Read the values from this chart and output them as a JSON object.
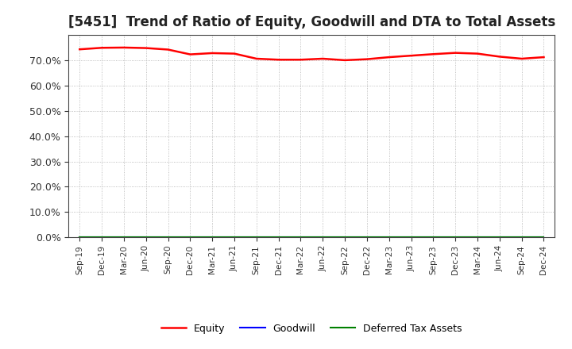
{
  "title": "[5451]  Trend of Ratio of Equity, Goodwill and DTA to Total Assets",
  "x_labels": [
    "Sep-19",
    "Dec-19",
    "Mar-20",
    "Jun-20",
    "Sep-20",
    "Dec-20",
    "Mar-21",
    "Jun-21",
    "Sep-21",
    "Dec-21",
    "Mar-22",
    "Jun-22",
    "Sep-22",
    "Dec-22",
    "Mar-23",
    "Jun-23",
    "Sep-23",
    "Dec-23",
    "Mar-24",
    "Jun-24",
    "Sep-24",
    "Dec-24"
  ],
  "equity": [
    0.743,
    0.749,
    0.75,
    0.748,
    0.742,
    0.723,
    0.728,
    0.726,
    0.706,
    0.702,
    0.702,
    0.706,
    0.7,
    0.704,
    0.712,
    0.718,
    0.724,
    0.729,
    0.726,
    0.714,
    0.706,
    0.712
  ],
  "goodwill": [
    0.0,
    0.0,
    0.0,
    0.0,
    0.0,
    0.0,
    0.0,
    0.0,
    0.0,
    0.0,
    0.0,
    0.0,
    0.0,
    0.0,
    0.0,
    0.0,
    0.0,
    0.0,
    0.0,
    0.0,
    0.0,
    0.0
  ],
  "dta": [
    0.0,
    0.0,
    0.0,
    0.0,
    0.0,
    0.0,
    0.0,
    0.0,
    0.0,
    0.0,
    0.0,
    0.0,
    0.0,
    0.0,
    0.0,
    0.0,
    0.0,
    0.0,
    0.0,
    0.0,
    0.0,
    0.0
  ],
  "equity_color": "#ff0000",
  "goodwill_color": "#0000ff",
  "dta_color": "#008000",
  "ylim": [
    0.0,
    0.8
  ],
  "yticks": [
    0.0,
    0.1,
    0.2,
    0.3,
    0.4,
    0.5,
    0.6,
    0.7
  ],
  "background_color": "#ffffff",
  "grid_color": "#999999",
  "title_fontsize": 12,
  "legend_labels": [
    "Equity",
    "Goodwill",
    "Deferred Tax Assets"
  ]
}
